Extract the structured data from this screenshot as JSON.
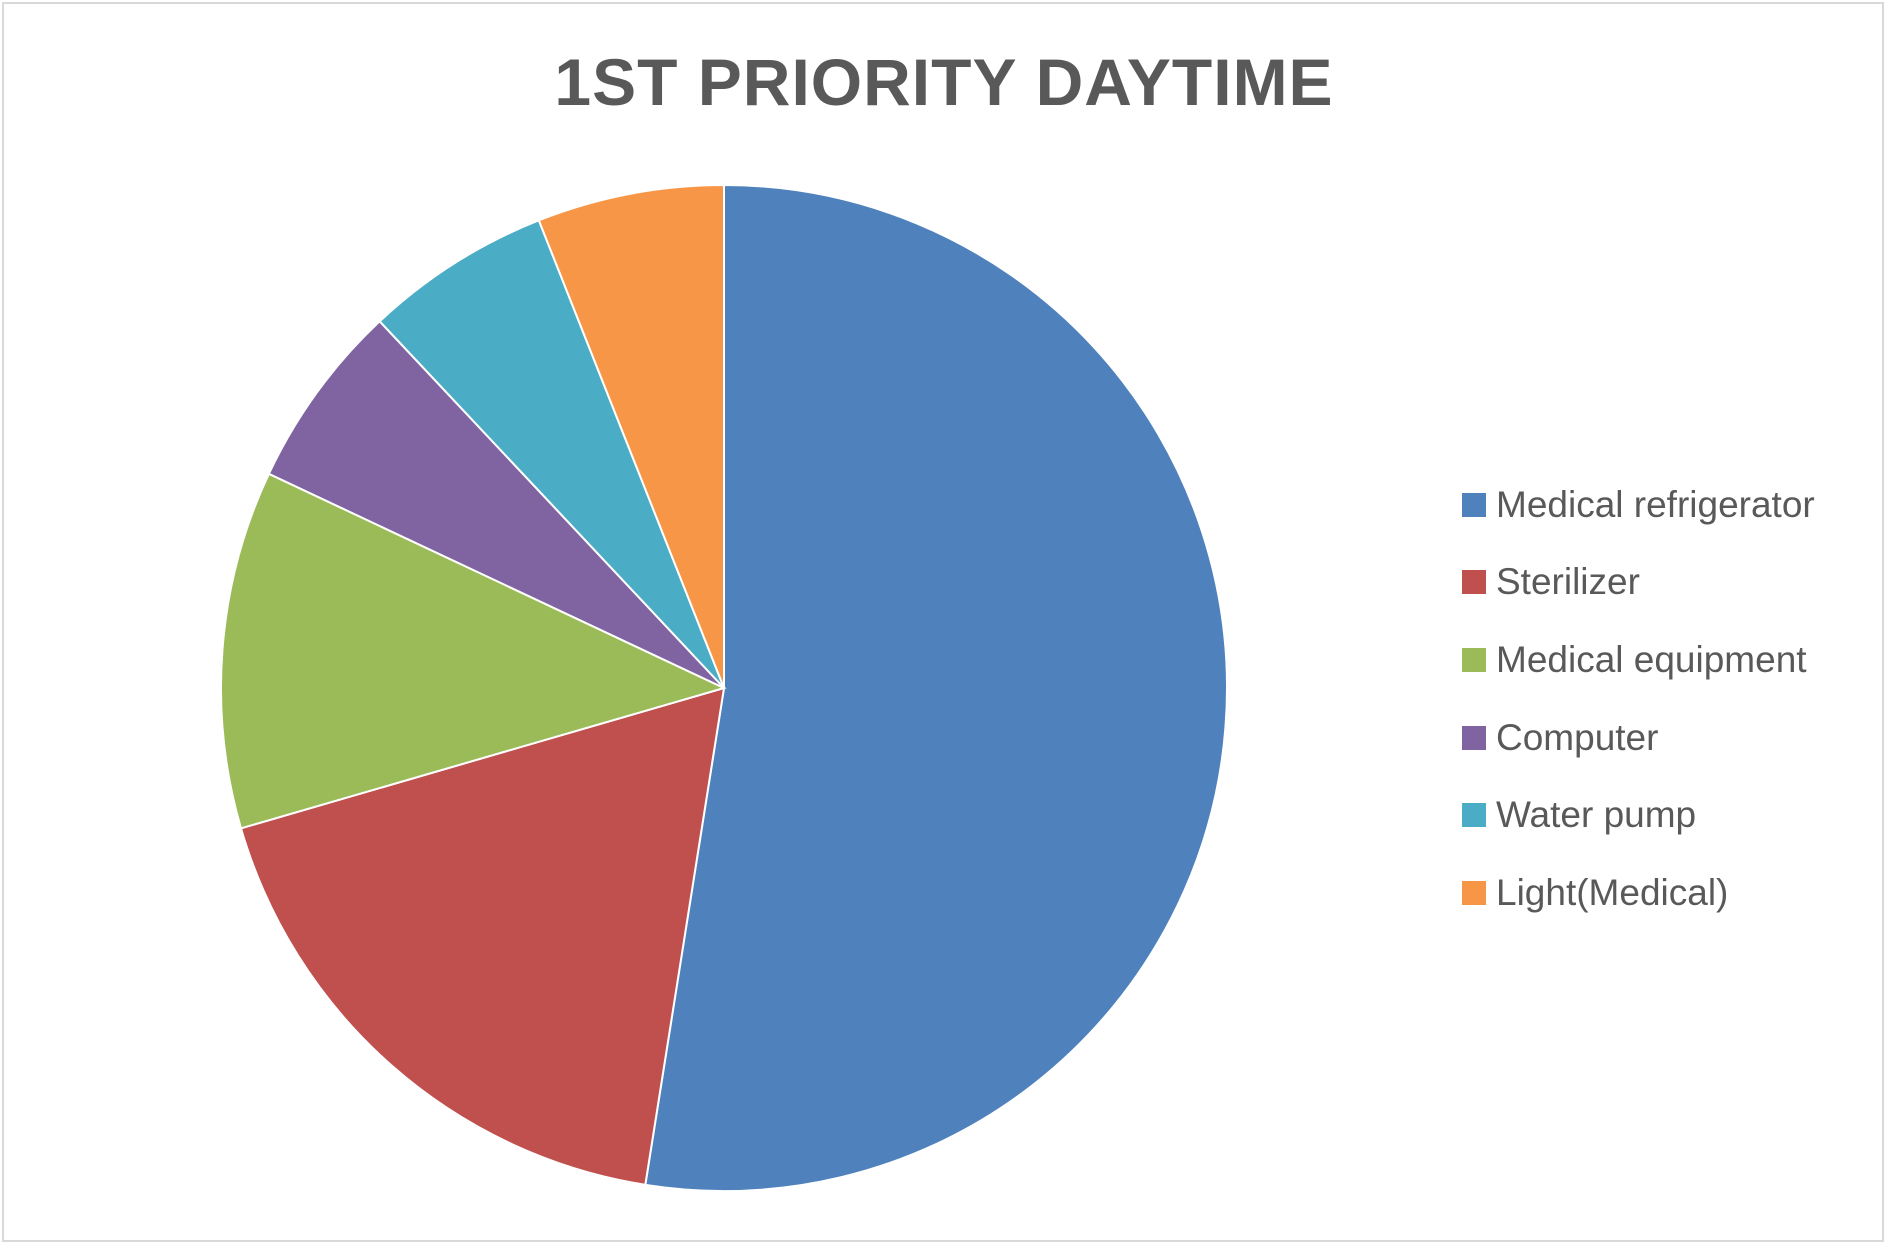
{
  "chart_data": {
    "type": "pie",
    "title": "1ST PRIORITY DAYTIME",
    "start_angle_deg": 0,
    "direction": "clockwise",
    "legend_position": "right",
    "slices": [
      {
        "label": "Medical refrigerator",
        "value": 52.5,
        "color": "#4f81bd"
      },
      {
        "label": "Sterilizer",
        "value": 18.0,
        "color": "#c0504d"
      },
      {
        "label": "Medical equipment",
        "value": 11.5,
        "color": "#9bbb59"
      },
      {
        "label": "Computer",
        "value": 6.0,
        "color": "#8064a2"
      },
      {
        "label": "Water pump",
        "value": 6.0,
        "color": "#4bacc6"
      },
      {
        "label": "Light(Medical)",
        "value": 6.0,
        "color": "#f79646"
      }
    ]
  }
}
